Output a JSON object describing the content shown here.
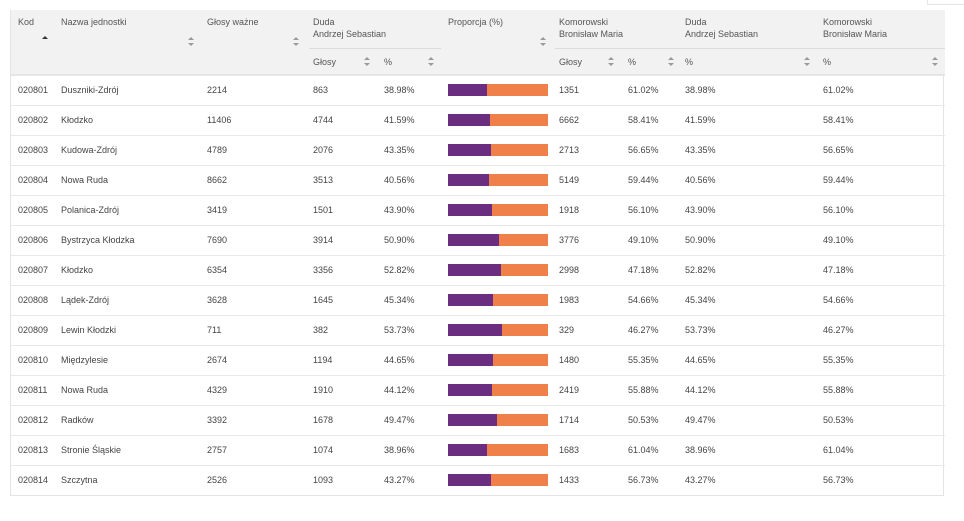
{
  "headers": {
    "kod": "Kod",
    "nazwa": "Nazwa jednostki",
    "glosy_wazne": "Głosy ważne",
    "duda": "Duda\nAndrzej Sebastian",
    "proporcja": "Proporcja (%)",
    "komorowski": "Komorowski\nBronisław Maria",
    "duda2": "Duda\nAndrzej Sebastian",
    "komorowski2": "Komorowski\nBronisław Maria",
    "sub_glosy": "Głosy",
    "sub_pct": "%"
  },
  "colors": {
    "duda": "#6b2d80",
    "komorowski": "#f0804a"
  },
  "rows": [
    {
      "kod": "020801",
      "nazwa": "Duszniki-Zdrój",
      "wazne": "2214",
      "duda_g": "863",
      "duda_p": "38.98%",
      "kom_g": "1351",
      "kom_p": "61.02%",
      "duda_share": 38.98
    },
    {
      "kod": "020802",
      "nazwa": "Kłodzko",
      "wazne": "11406",
      "duda_g": "4744",
      "duda_p": "41.59%",
      "kom_g": "6662",
      "kom_p": "58.41%",
      "duda_share": 41.59
    },
    {
      "kod": "020803",
      "nazwa": "Kudowa-Zdrój",
      "wazne": "4789",
      "duda_g": "2076",
      "duda_p": "43.35%",
      "kom_g": "2713",
      "kom_p": "56.65%",
      "duda_share": 43.35
    },
    {
      "kod": "020804",
      "nazwa": "Nowa Ruda",
      "wazne": "8662",
      "duda_g": "3513",
      "duda_p": "40.56%",
      "kom_g": "5149",
      "kom_p": "59.44%",
      "duda_share": 40.56
    },
    {
      "kod": "020805",
      "nazwa": "Polanica-Zdrój",
      "wazne": "3419",
      "duda_g": "1501",
      "duda_p": "43.90%",
      "kom_g": "1918",
      "kom_p": "56.10%",
      "duda_share": 43.9
    },
    {
      "kod": "020806",
      "nazwa": "Bystrzyca Kłodzka",
      "wazne": "7690",
      "duda_g": "3914",
      "duda_p": "50.90%",
      "kom_g": "3776",
      "kom_p": "49.10%",
      "duda_share": 50.9
    },
    {
      "kod": "020807",
      "nazwa": "Kłodzko",
      "wazne": "6354",
      "duda_g": "3356",
      "duda_p": "52.82%",
      "kom_g": "2998",
      "kom_p": "47.18%",
      "duda_share": 52.82
    },
    {
      "kod": "020808",
      "nazwa": "Lądek-Zdrój",
      "wazne": "3628",
      "duda_g": "1645",
      "duda_p": "45.34%",
      "kom_g": "1983",
      "kom_p": "54.66%",
      "duda_share": 45.34
    },
    {
      "kod": "020809",
      "nazwa": "Lewin Kłodzki",
      "wazne": "711",
      "duda_g": "382",
      "duda_p": "53.73%",
      "kom_g": "329",
      "kom_p": "46.27%",
      "duda_share": 53.73
    },
    {
      "kod": "020810",
      "nazwa": "Międzylesie",
      "wazne": "2674",
      "duda_g": "1194",
      "duda_p": "44.65%",
      "kom_g": "1480",
      "kom_p": "55.35%",
      "duda_share": 44.65
    },
    {
      "kod": "020811",
      "nazwa": "Nowa Ruda",
      "wazne": "4329",
      "duda_g": "1910",
      "duda_p": "44.12%",
      "kom_g": "2419",
      "kom_p": "55.88%",
      "duda_share": 44.12
    },
    {
      "kod": "020812",
      "nazwa": "Radków",
      "wazne": "3392",
      "duda_g": "1678",
      "duda_p": "49.47%",
      "kom_g": "1714",
      "kom_p": "50.53%",
      "duda_share": 49.47
    },
    {
      "kod": "020813",
      "nazwa": "Stronie Śląskie",
      "wazne": "2757",
      "duda_g": "1074",
      "duda_p": "38.96%",
      "kom_g": "1683",
      "kom_p": "61.04%",
      "duda_share": 38.96
    },
    {
      "kod": "020814",
      "nazwa": "Szczytna",
      "wazne": "2526",
      "duda_g": "1093",
      "duda_p": "43.27%",
      "kom_g": "1433",
      "kom_p": "56.73%",
      "duda_share": 43.27
    }
  ]
}
